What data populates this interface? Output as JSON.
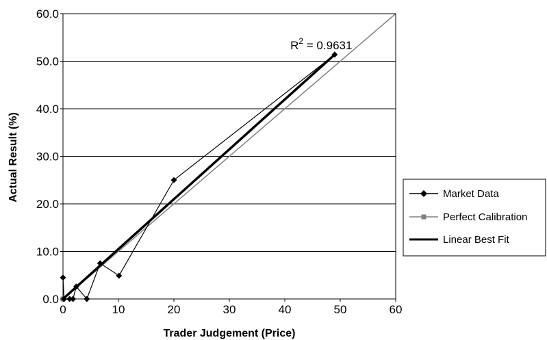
{
  "chart_data": {
    "type": "scatter",
    "xlabel": "Trader Judgement (Price)",
    "ylabel": "Actual Result (%)",
    "xlim": [
      0,
      60
    ],
    "ylim": [
      0,
      60
    ],
    "x_ticks": [
      "0",
      "10",
      "20",
      "30",
      "40",
      "50",
      "60"
    ],
    "y_ticks": [
      "0.0",
      "10.0",
      "20.0",
      "30.0",
      "40.0",
      "50.0",
      "60.0"
    ],
    "grid": "horizontal",
    "legend_position": "right",
    "series": [
      {
        "name": "Market Data",
        "style": "line-with-diamond-markers",
        "color": "#000000",
        "points": [
          [
            0.0,
            4.5
          ],
          [
            0.2,
            0.0
          ],
          [
            1.2,
            0.0
          ],
          [
            1.8,
            0.0
          ],
          [
            2.4,
            2.6
          ],
          [
            4.3,
            0.0
          ],
          [
            6.7,
            7.5
          ],
          [
            10.1,
            4.9
          ],
          [
            20.0,
            25.0
          ],
          [
            49.0,
            51.4
          ]
        ]
      },
      {
        "name": "Perfect Calibration",
        "style": "line-with-square-markers",
        "color": "#808080",
        "points": [
          [
            0,
            0
          ],
          [
            60,
            60
          ]
        ]
      },
      {
        "name": "Linear Best Fit",
        "style": "thick-line",
        "color": "#000000",
        "points": [
          [
            0.0,
            -0.4
          ],
          [
            49.0,
            51.4
          ]
        ]
      }
    ],
    "annotations": [
      {
        "label": "R",
        "superscript": "2",
        "value_text": " = 0.9631",
        "at": [
          41.0,
          52.5
        ]
      }
    ]
  }
}
